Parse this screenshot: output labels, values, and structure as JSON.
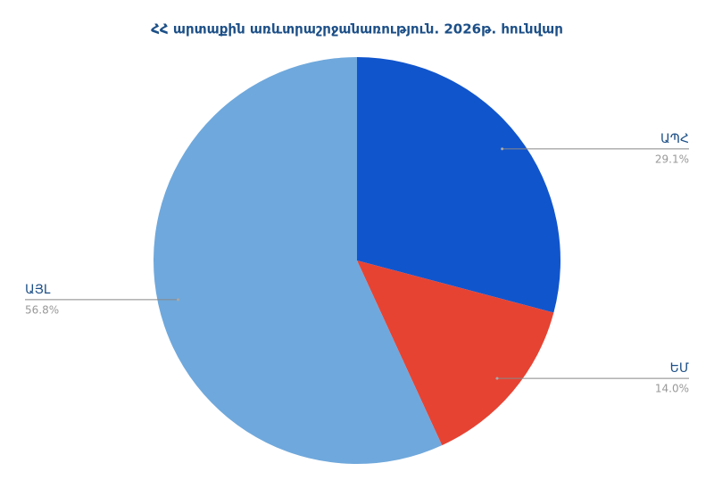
{
  "chart_data": {
    "type": "pie",
    "title": "ՀՀ արտաքին առևտրաշրջանառություն. 2026թ. հունվար",
    "categories": [
      "ԱՊՀ",
      "ԵՄ",
      "ԱՅԼ"
    ],
    "values": [
      29.1,
      14.0,
      56.8
    ],
    "value_labels": [
      "29.1%",
      "14.0%",
      "56.8%"
    ],
    "colors": [
      "#1155cc",
      "#e64333",
      "#6fa8dc"
    ]
  }
}
